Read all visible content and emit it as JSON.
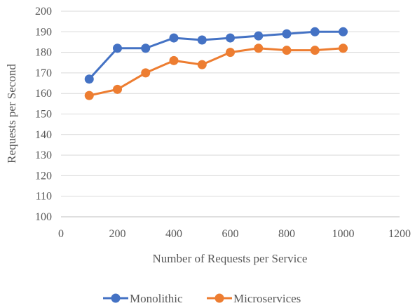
{
  "chart_data": {
    "type": "line",
    "title": "",
    "xlabel": "Number of Requests per Service",
    "ylabel": "Requests per Second",
    "xlim": [
      0,
      1200
    ],
    "ylim": [
      100,
      200
    ],
    "xticks": [
      0,
      200,
      400,
      600,
      800,
      1000,
      1200
    ],
    "yticks": [
      100,
      110,
      120,
      130,
      140,
      150,
      160,
      170,
      180,
      190,
      200
    ],
    "grid": "horizontal",
    "legend_position": "bottom",
    "x": [
      100,
      200,
      300,
      400,
      500,
      600,
      700,
      800,
      900,
      1000
    ],
    "series": [
      {
        "name": "Monolithic",
        "color": "#4472C4",
        "values": [
          167,
          182,
          182,
          187,
          186,
          187,
          188,
          189,
          190,
          190
        ]
      },
      {
        "name": "Microservices",
        "color": "#ED7D31",
        "values": [
          159,
          162,
          170,
          176,
          174,
          180,
          182,
          181,
          181,
          182
        ]
      }
    ]
  }
}
